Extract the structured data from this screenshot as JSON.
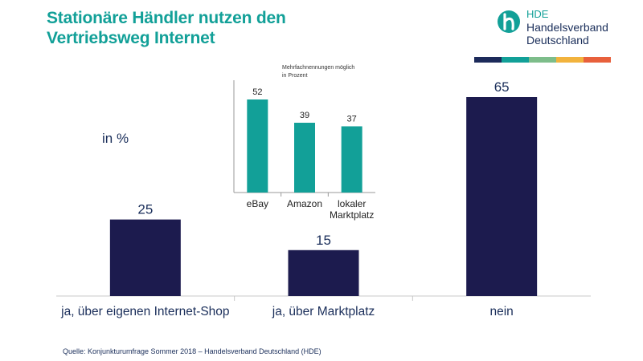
{
  "title": {
    "line1": "Stationäre Händler nutzen den",
    "line2": "Vertriebsweg Internet"
  },
  "logo": {
    "abbr": "HDE",
    "line1": "Handelsverband",
    "line2": "Deutschland"
  },
  "colors": {
    "title": "#12a098",
    "main_bar": "#1c1b4e",
    "inset_bar": "#12a098",
    "stripe": [
      "#1c2a5a",
      "#12a098",
      "#7dbd8a",
      "#f2b33d",
      "#e8603c"
    ]
  },
  "unit_label": "in %",
  "source": "Quelle: Konjunkturumfrage Sommer 2018 – Handelsverband Deutschland (HDE)",
  "chart_data": [
    {
      "type": "bar",
      "title": "Stationäre Händler nutzen den Vertriebsweg Internet",
      "ylabel": "in %",
      "categories": [
        "ja, über eigenen Internet-Shop",
        "ja, über Marktplatz",
        "nein"
      ],
      "values": [
        25,
        15,
        65
      ],
      "ylim": [
        0,
        70
      ]
    },
    {
      "type": "bar",
      "title": "Mehrfachnennungen möglich in Prozent",
      "note_line1": "Mehrfachnennungen möglich",
      "note_line2": "in Prozent",
      "categories": [
        "eBay",
        "Amazon",
        "lokaler Marktplatz"
      ],
      "category_lines": [
        [
          "eBay"
        ],
        [
          "Amazon"
        ],
        [
          "lokaler",
          "Marktplatz"
        ]
      ],
      "values": [
        52,
        39,
        37
      ],
      "ylim": [
        0,
        60
      ]
    }
  ]
}
